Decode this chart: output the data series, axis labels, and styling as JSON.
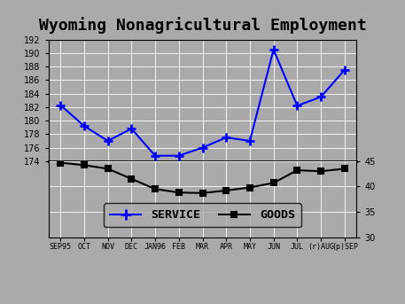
{
  "title": "Wyoming Nonagricultural Employment",
  "service_values": [
    182.3,
    179.2,
    177.0,
    178.8,
    174.8,
    174.8,
    176.0,
    177.5,
    177.0,
    190.5,
    182.2,
    183.5,
    187.5
  ],
  "goods_values": [
    44.7,
    44.2,
    43.5,
    41.5,
    39.5,
    38.8,
    38.7,
    39.2,
    39.8,
    40.7,
    43.2,
    43.0,
    43.5
  ],
  "service_color": "#0000ff",
  "goods_color": "#000000",
  "bg_color": "#aaaaaa",
  "left_ylim": [
    174,
    192
  ],
  "right_ylim": [
    30,
    45
  ],
  "left_yticks": [
    174,
    176,
    178,
    180,
    182,
    184,
    186,
    188,
    190,
    192
  ],
  "right_yticks": [
    30,
    35,
    40,
    45
  ],
  "title_fontsize": 13,
  "x_labels_row1": [
    "",
    "OCT",
    "",
    "DEC",
    "",
    "FEB",
    "",
    "APR",
    "",
    "JUN",
    "",
    "(r)AUG",
    ""
  ],
  "x_labels_row2": [
    "SEP95",
    "",
    "NOV",
    "",
    "JAN96",
    "",
    "MAR",
    "",
    "MAY",
    "",
    "JUL",
    "",
    "(p)SEP"
  ]
}
